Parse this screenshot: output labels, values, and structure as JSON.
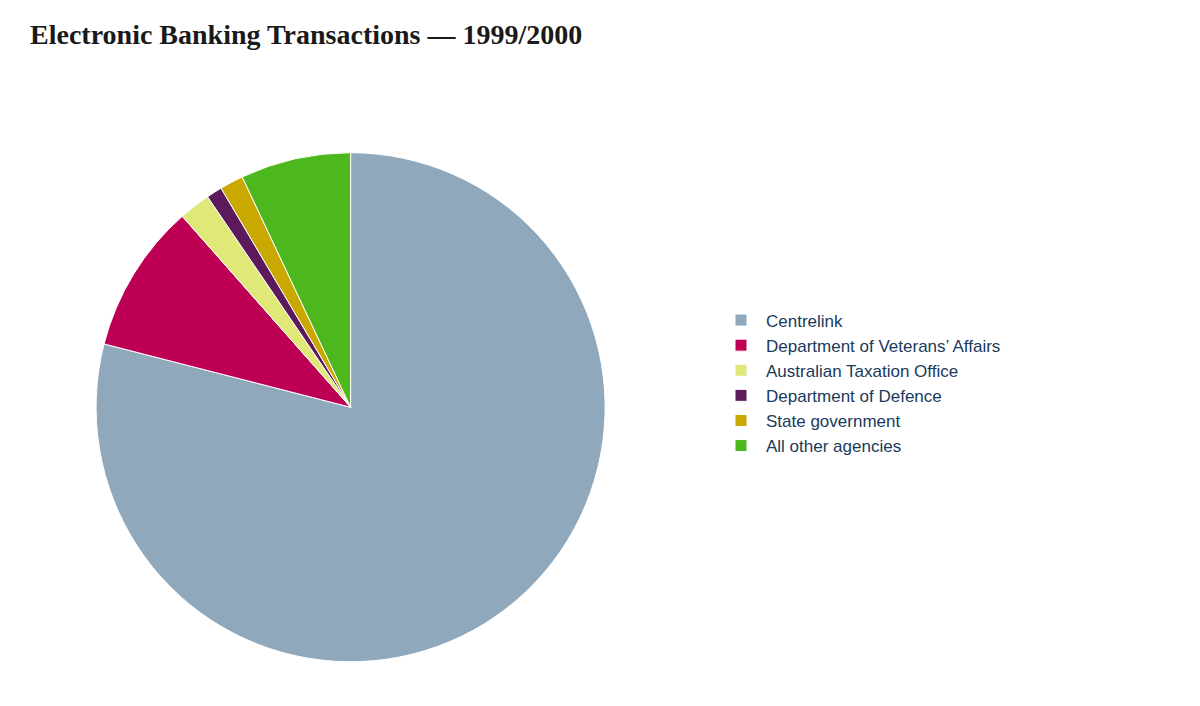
{
  "chart_data": {
    "type": "pie",
    "title": "Electronic Banking Transactions — 1999/2000",
    "categories": [
      "Centrelink",
      "Department of Veterans’ Affairs",
      "Australian Taxation Office",
      "Department of Defence",
      "State government",
      "All other agencies"
    ],
    "values": [
      79,
      9.5,
      2.0,
      1.0,
      1.5,
      7.0
    ],
    "colors": [
      "#8fa8bc",
      "#be0055",
      "#e0e878",
      "#5c1a5c",
      "#c9a800",
      "#4db81e"
    ],
    "legend": "right"
  }
}
